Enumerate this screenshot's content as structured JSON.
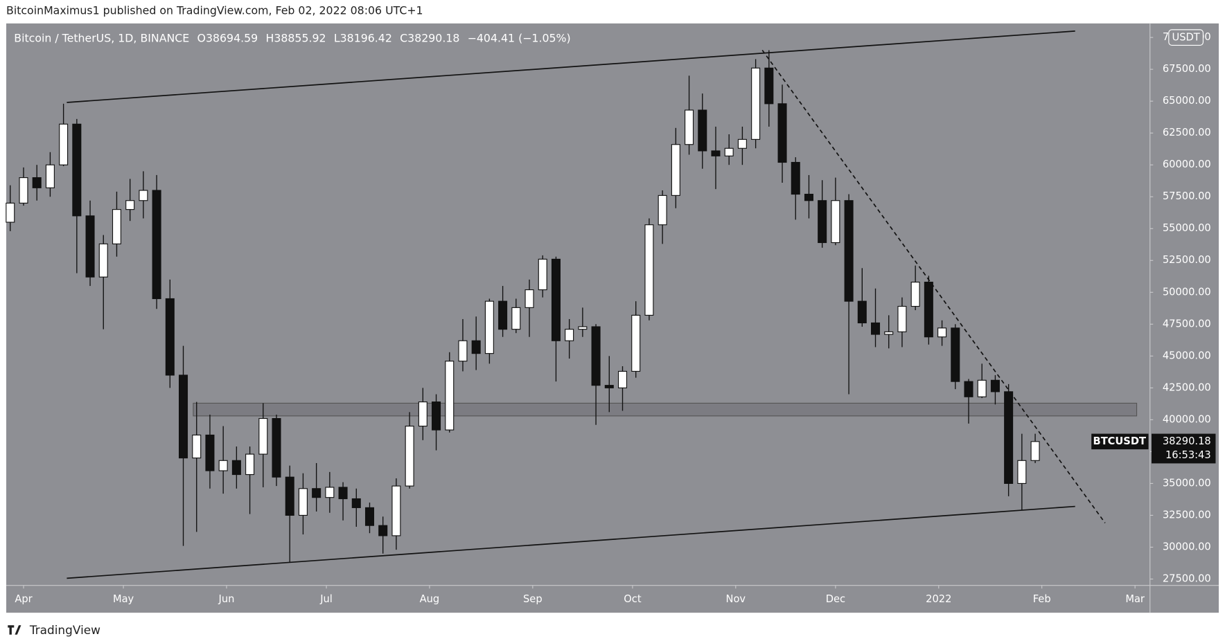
{
  "header": {
    "byline": "BitcoinMaximus1 published on TradingView.com, Feb 02, 2022 08:06 UTC+1"
  },
  "footer": {
    "brand": "TradingView"
  },
  "chart_data": {
    "type": "candlestick",
    "symbol": "Bitcoin / TetherUS, 1D, BINANCE",
    "ohlc": [
      {
        "key": "O",
        "value": 38694.59
      },
      {
        "key": "H",
        "value": 38855.92
      },
      {
        "key": "L",
        "value": 38196.42
      },
      {
        "key": "C",
        "value": 38290.18
      }
    ],
    "change": "−404.41 (−1.05%)",
    "currency": "USDT",
    "up_color": "#ffffff",
    "down_color": "#111111",
    "wick_color": "#111111",
    "x": [
      -4,
      0,
      4,
      8,
      12,
      16,
      20,
      24,
      28,
      32,
      36,
      40,
      44,
      48,
      52,
      56,
      60,
      64,
      68,
      72,
      76,
      80,
      84,
      88,
      92,
      96,
      100,
      104,
      108,
      112,
      116,
      120,
      124,
      128,
      132,
      136,
      140,
      144,
      148,
      152,
      156,
      160,
      164,
      168,
      172,
      176,
      180,
      184,
      188,
      192,
      196,
      200,
      204,
      208,
      212,
      216,
      220,
      224,
      228,
      232,
      236,
      240,
      244,
      248,
      252,
      256,
      260,
      264,
      268,
      272,
      276,
      280,
      284,
      288,
      292,
      296,
      300,
      304
    ],
    "open": [
      55500,
      57000,
      59000,
      58200,
      60000,
      63200,
      56000,
      51200,
      53800,
      56500,
      57200,
      58000,
      49500,
      43500,
      37000,
      38800,
      36000,
      36800,
      35700,
      37300,
      40100,
      35500,
      32500,
      34600,
      33900,
      34700,
      33800,
      33100,
      31700,
      30900,
      34800,
      39500,
      41400,
      39200,
      44600,
      46200,
      45200,
      49300,
      47100,
      48800,
      50200,
      52600,
      46200,
      47100,
      47300,
      42700,
      42500,
      43800,
      48200,
      55300,
      57600,
      61600,
      64300,
      61100,
      60700,
      61300,
      62000,
      67600,
      64800,
      60200,
      57700,
      57200,
      53900,
      57200,
      49300,
      47600,
      46700,
      46900,
      48900,
      50800,
      46500,
      47200,
      43000,
      41800,
      43100,
      42200,
      35000,
      36800
    ],
    "high": [
      58400,
      59800,
      60000,
      61000,
      64800,
      63600,
      57200,
      54500,
      57900,
      58900,
      59500,
      59200,
      51000,
      45800,
      41400,
      40400,
      39500,
      37900,
      37900,
      41300,
      40400,
      36400,
      35800,
      36600,
      35900,
      35100,
      34600,
      33500,
      32400,
      35400,
      40600,
      42500,
      42000,
      45300,
      47900,
      48100,
      49500,
      50500,
      49500,
      51000,
      52900,
      52800,
      47900,
      48800,
      47500,
      45000,
      44200,
      49300,
      55800,
      58000,
      62900,
      67000,
      65600,
      63000,
      62400,
      63000,
      68300,
      69000,
      66300,
      60600,
      59200,
      58800,
      59000,
      57700,
      51900,
      50300,
      48200,
      49600,
      52100,
      51300,
      47800,
      47500,
      43200,
      44400,
      43500,
      42800,
      38900,
      38900
    ],
    "low": [
      54800,
      56800,
      57200,
      57500,
      59900,
      51500,
      50500,
      47100,
      52800,
      55600,
      55800,
      48700,
      42500,
      30100,
      31200,
      34600,
      34200,
      34600,
      32600,
      34700,
      34800,
      28800,
      31000,
      32800,
      32700,
      32100,
      31600,
      31100,
      29500,
      29800,
      34600,
      38400,
      37600,
      39000,
      43800,
      43900,
      44400,
      46500,
      46800,
      46500,
      49600,
      43000,
      44800,
      46500,
      39600,
      40600,
      40700,
      43300,
      47800,
      53800,
      56600,
      60800,
      59700,
      58100,
      60000,
      60000,
      61300,
      63000,
      58600,
      55700,
      55800,
      53500,
      53700,
      42000,
      47300,
      45700,
      45600,
      45700,
      48600,
      45900,
      45800,
      42400,
      39700,
      41700,
      41200,
      34000,
      32900,
      36600
    ],
    "close": [
      57000,
      59000,
      58200,
      60000,
      63200,
      56000,
      51200,
      53800,
      56500,
      57200,
      58000,
      49500,
      43500,
      37000,
      38800,
      36000,
      36800,
      35700,
      37300,
      40100,
      35500,
      32500,
      34600,
      33900,
      34700,
      33800,
      33100,
      31700,
      30900,
      34800,
      39500,
      41400,
      39200,
      44600,
      46200,
      45200,
      49300,
      47100,
      48800,
      50200,
      52600,
      46200,
      47100,
      47300,
      42700,
      42500,
      43800,
      48200,
      55300,
      57600,
      61600,
      64300,
      61100,
      60700,
      61300,
      62000,
      67600,
      64800,
      60200,
      57700,
      57200,
      53900,
      57200,
      49300,
      47600,
      46700,
      46900,
      48900,
      50800,
      46500,
      47200,
      43000,
      41800,
      43100,
      42200,
      35000,
      36800,
      38290
    ],
    "xlim": [
      -5.2,
      338.5
    ],
    "xticks": [
      {
        "value": 0,
        "label": "Apr"
      },
      {
        "value": 30,
        "label": "May"
      },
      {
        "value": 61,
        "label": "Jun"
      },
      {
        "value": 91,
        "label": "Jul"
      },
      {
        "value": 122,
        "label": "Aug"
      },
      {
        "value": 153,
        "label": "Sep"
      },
      {
        "value": 183,
        "label": "Oct"
      },
      {
        "value": 214,
        "label": "Nov"
      },
      {
        "value": 244,
        "label": "Dec"
      },
      {
        "value": 275,
        "label": "2022"
      },
      {
        "value": 306,
        "label": "Feb"
      },
      {
        "value": 334,
        "label": "Mar"
      }
    ],
    "ylim": [
      27000,
      71100
    ],
    "yticks": [
      {
        "value": 27500,
        "label": "27500.00"
      },
      {
        "value": 30000,
        "label": "30000.00"
      },
      {
        "value": 32500,
        "label": "32500.00"
      },
      {
        "value": 35000,
        "label": "35000.00"
      },
      {
        "value": 37500,
        "label": "37500.00"
      },
      {
        "value": 40000,
        "label": "40000.00"
      },
      {
        "value": 42500,
        "label": "42500.00"
      },
      {
        "value": 45000,
        "label": "45000.00"
      },
      {
        "value": 47500,
        "label": "47500.00"
      },
      {
        "value": 50000,
        "label": "50000.00"
      },
      {
        "value": 52500,
        "label": "52500.00"
      },
      {
        "value": 55000,
        "label": "55000.00"
      },
      {
        "value": 57500,
        "label": "57500.00"
      },
      {
        "value": 60000,
        "label": "60000.00"
      },
      {
        "value": 62500,
        "label": "62500.00"
      },
      {
        "value": 65000,
        "label": "65000.00"
      },
      {
        "value": 67500,
        "label": "67500.00"
      },
      {
        "value": 70000,
        "label": "70000.00"
      }
    ],
    "grid": false,
    "lines": [
      {
        "x": [
          13,
          316
        ],
        "y": [
          64900,
          70500
        ],
        "style": "solid"
      },
      {
        "x": [
          13,
          316
        ],
        "y": [
          27560,
          33200
        ],
        "style": "solid"
      },
      {
        "x": [
          222,
          325
        ],
        "y": [
          69000,
          31900
        ],
        "style": "dashed"
      }
    ],
    "zone": {
      "x": [
        51,
        334.5
      ],
      "y": [
        40300,
        41300
      ]
    },
    "last_price": {
      "symbol": "BTCUSDT",
      "value": 38290.18,
      "countdown": "16:53:43"
    }
  }
}
